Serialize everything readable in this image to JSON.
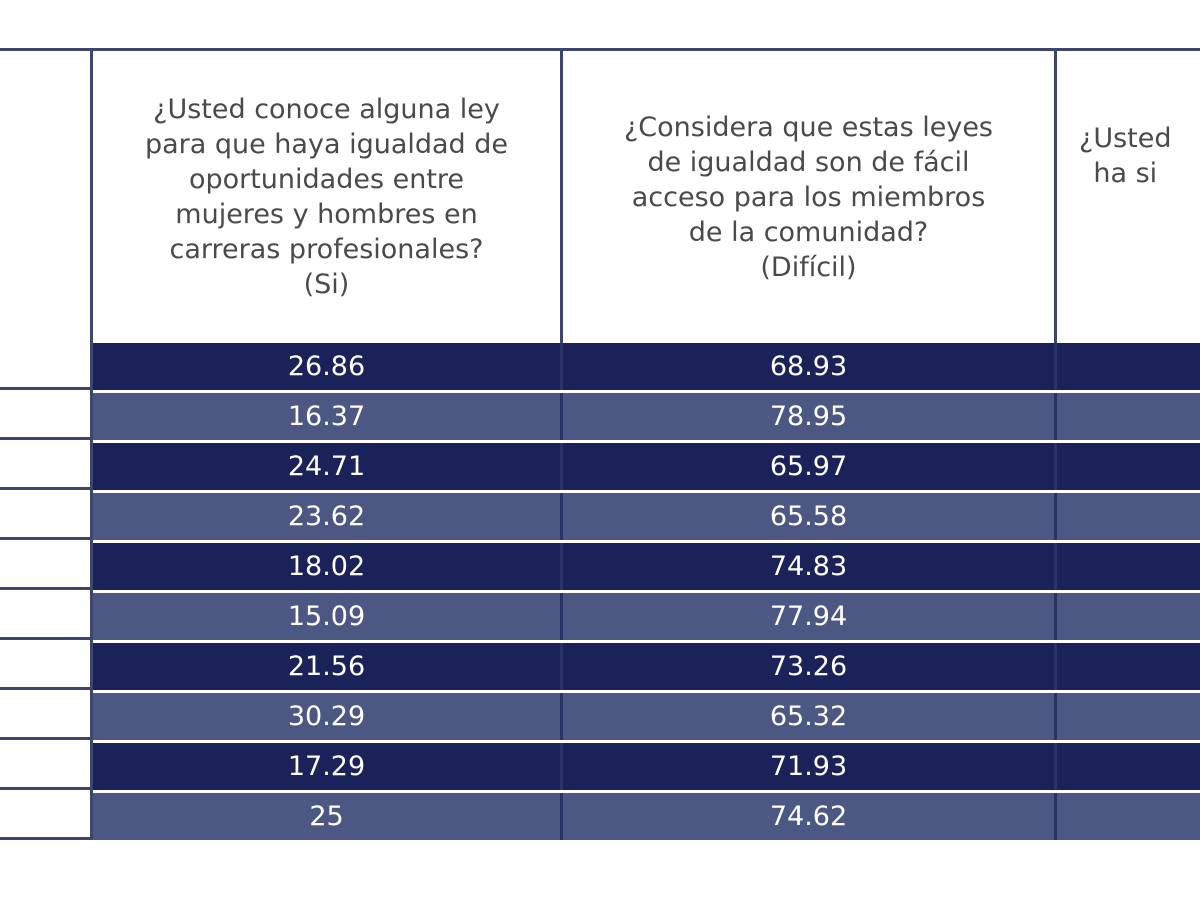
{
  "table": {
    "headers": [
      "",
      "¿Usted conoce alguna ley\npara que haya igualdad de\noportunidades entre\nmujeres y hombres en\ncarreras profesionales?\n(Si)",
      "¿Considera que estas leyes\nde igualdad son de fácil\nacceso para los miembros\nde la comunidad?\n(Difícil)",
      "¿Usted\nha si"
    ],
    "rows": [
      {
        "col1": "26.86",
        "col2": "68.93"
      },
      {
        "col1": "16.37",
        "col2": "78.95"
      },
      {
        "col1": "24.71",
        "col2": "65.97"
      },
      {
        "col1": "23.62",
        "col2": "65.58"
      },
      {
        "col1": "18.02",
        "col2": "74.83"
      },
      {
        "col1": "15.09",
        "col2": "77.94"
      },
      {
        "col1": "21.56",
        "col2": "73.26"
      },
      {
        "col1": "30.29",
        "col2": "65.32"
      },
      {
        "col1": "17.29",
        "col2": "71.93"
      },
      {
        "col1": "25",
        "col2": "74.62"
      }
    ]
  },
  "colors": {
    "dark_row": "#1b2259",
    "light_row": "#4d5784",
    "border": "#3c466e",
    "header_text": "#4a4a4a",
    "cell_text": "#ffffff"
  }
}
